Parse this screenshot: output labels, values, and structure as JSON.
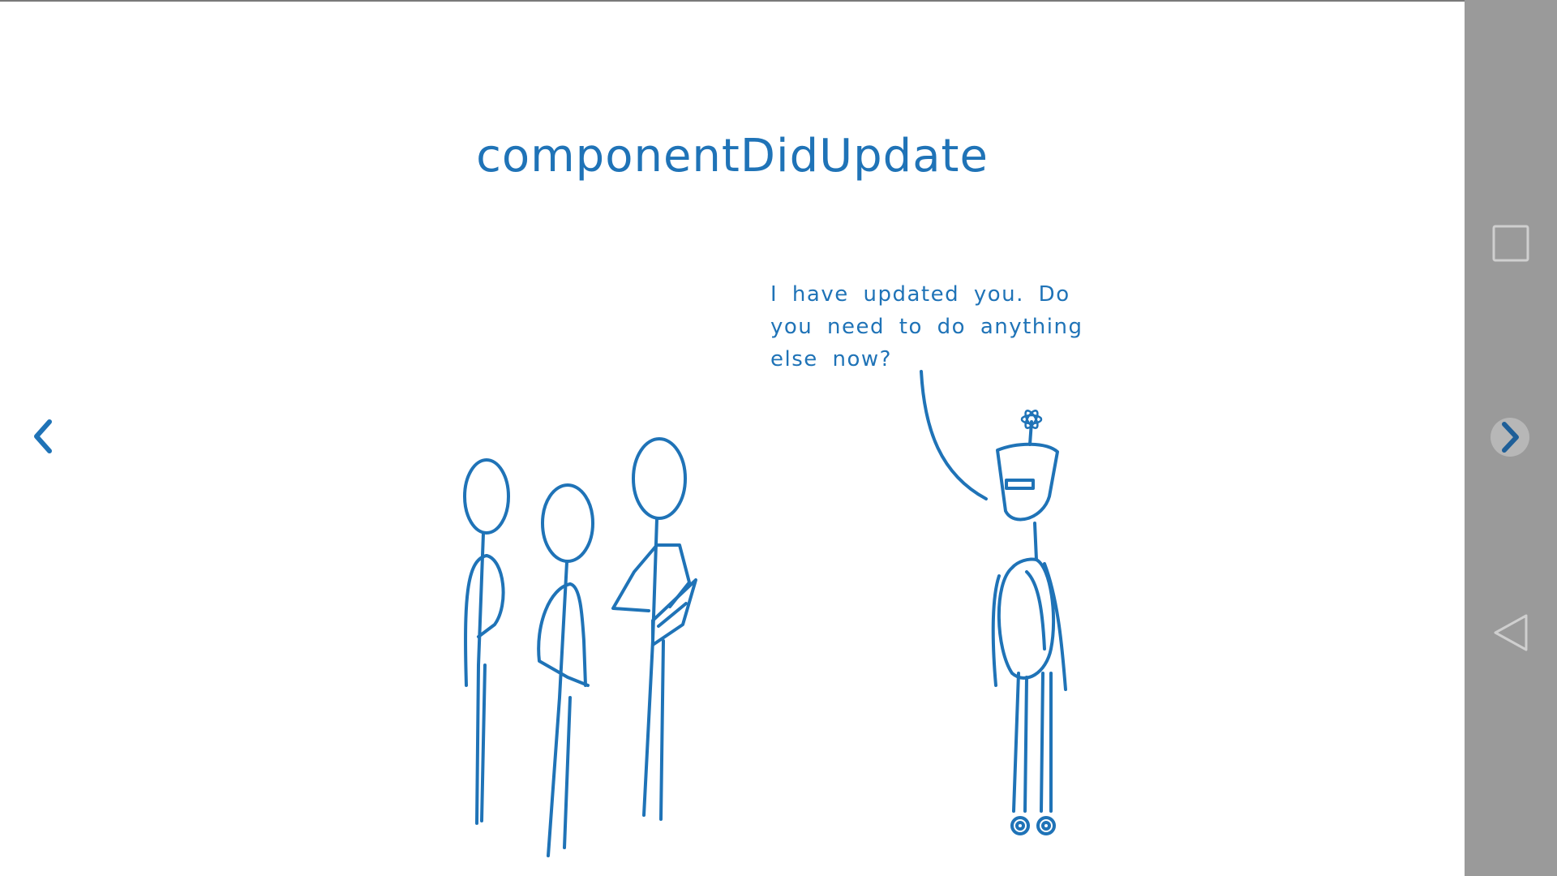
{
  "slide": {
    "title": "componentDidUpdate",
    "speech_lines": [
      "I have updated you. Do",
      "you need to do anything",
      "else now?"
    ]
  },
  "navigation": {
    "prev_icon": "chevron-left-icon",
    "next_icon": "chevron-right-icon"
  },
  "system_nav": {
    "recent_icon": "square-icon",
    "back_icon": "triangle-back-icon"
  },
  "colors": {
    "ink": "#1f73b7",
    "nav_bar": "#9a9a9a"
  }
}
